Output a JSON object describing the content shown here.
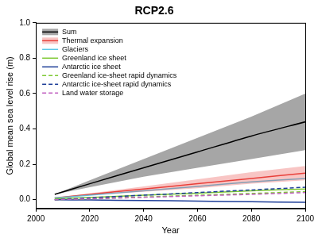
{
  "chart_data": {
    "type": "line",
    "title": "RCP2.6",
    "x_label": "Year",
    "y_label": "Global mean sea level rise (m)",
    "x": [
      2007,
      2020,
      2040,
      2060,
      2080,
      2100
    ],
    "xlim": [
      2000,
      2100
    ],
    "xticks": [
      2000,
      2020,
      2040,
      2060,
      2080,
      2100
    ],
    "ylim": [
      -0.05,
      1.0
    ],
    "yticks": [
      {
        "value": 0,
        "label": "0.0"
      },
      0.2,
      0.4,
      0.6,
      0.8,
      {
        "value": 1,
        "label": "1.0"
      }
    ],
    "grid": false,
    "legend": "upper left",
    "series": [
      {
        "name": "Sum",
        "color": "#000000",
        "line_style": "solid",
        "values": [
          0.03,
          0.09,
          0.18,
          0.27,
          0.36,
          0.44
        ],
        "lower": [
          0.03,
          0.07,
          0.13,
          0.18,
          0.23,
          0.28
        ],
        "upper": [
          0.03,
          0.11,
          0.23,
          0.35,
          0.47,
          0.6
        ]
      },
      {
        "name": "Thermal expansion",
        "color": "#e8403a",
        "line_style": "solid",
        "values": [
          0.01,
          0.03,
          0.06,
          0.09,
          0.12,
          0.15
        ],
        "lower": [
          0.01,
          0.025,
          0.045,
          0.065,
          0.09,
          0.11
        ],
        "upper": [
          0.01,
          0.035,
          0.075,
          0.115,
          0.155,
          0.19
        ]
      },
      {
        "name": "Glaciers",
        "color": "#5bc8e8",
        "line_style": "solid",
        "values": [
          0.01,
          0.025,
          0.05,
          0.075,
          0.1,
          0.12
        ]
      },
      {
        "name": "Greenland ice sheet",
        "color": "#7dc832",
        "line_style": "solid",
        "values": [
          0.005,
          0.012,
          0.025,
          0.037,
          0.05,
          0.06
        ]
      },
      {
        "name": "Antarctic ice sheet",
        "color": "#1f3f99",
        "line_style": "solid",
        "values": [
          0.0,
          -0.002,
          -0.005,
          -0.008,
          -0.012,
          -0.015
        ]
      },
      {
        "name": "Greenland ice-sheet rapid dynamics",
        "color": "#7dc832",
        "line_style": "dashed",
        "values": [
          0.0,
          0.005,
          0.015,
          0.025,
          0.035,
          0.045
        ]
      },
      {
        "name": "Antarctic ice-sheet rapid dynamics",
        "color": "#1f3f99",
        "line_style": "dashed",
        "values": [
          0.0,
          0.01,
          0.025,
          0.04,
          0.055,
          0.07
        ]
      },
      {
        "name": "Land water storage",
        "color": "#c060c0",
        "line_style": "dashed",
        "values": [
          0.0,
          0.005,
          0.013,
          0.022,
          0.03,
          0.04
        ]
      }
    ]
  }
}
